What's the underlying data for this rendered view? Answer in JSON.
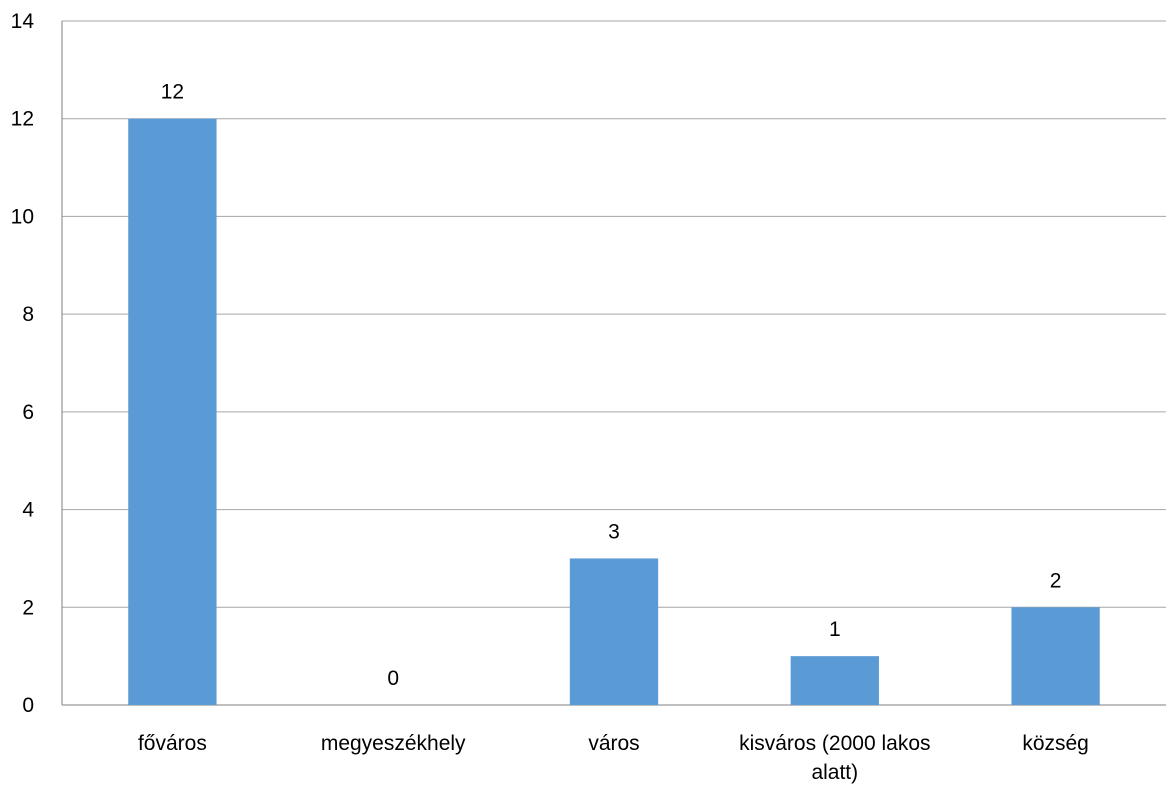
{
  "chart_data": {
    "type": "bar",
    "categories": [
      [
        "főváros"
      ],
      [
        "megyeszékhely"
      ],
      [
        "város"
      ],
      [
        "kisváros (2000 lakos",
        "alatt)"
      ],
      [
        "község"
      ]
    ],
    "values": [
      12,
      0,
      3,
      1,
      2
    ],
    "data_labels": [
      "12",
      "0",
      "3",
      "1",
      "2"
    ],
    "y_ticks": [
      "0",
      "2",
      "4",
      "6",
      "8",
      "10",
      "12",
      "14"
    ],
    "ylim": [
      0,
      14
    ],
    "grid": true,
    "legend": "none",
    "colors": {
      "bar": "#5b9bd5",
      "grid": "#a6a6a6",
      "axis": "#7f7f7f"
    }
  }
}
